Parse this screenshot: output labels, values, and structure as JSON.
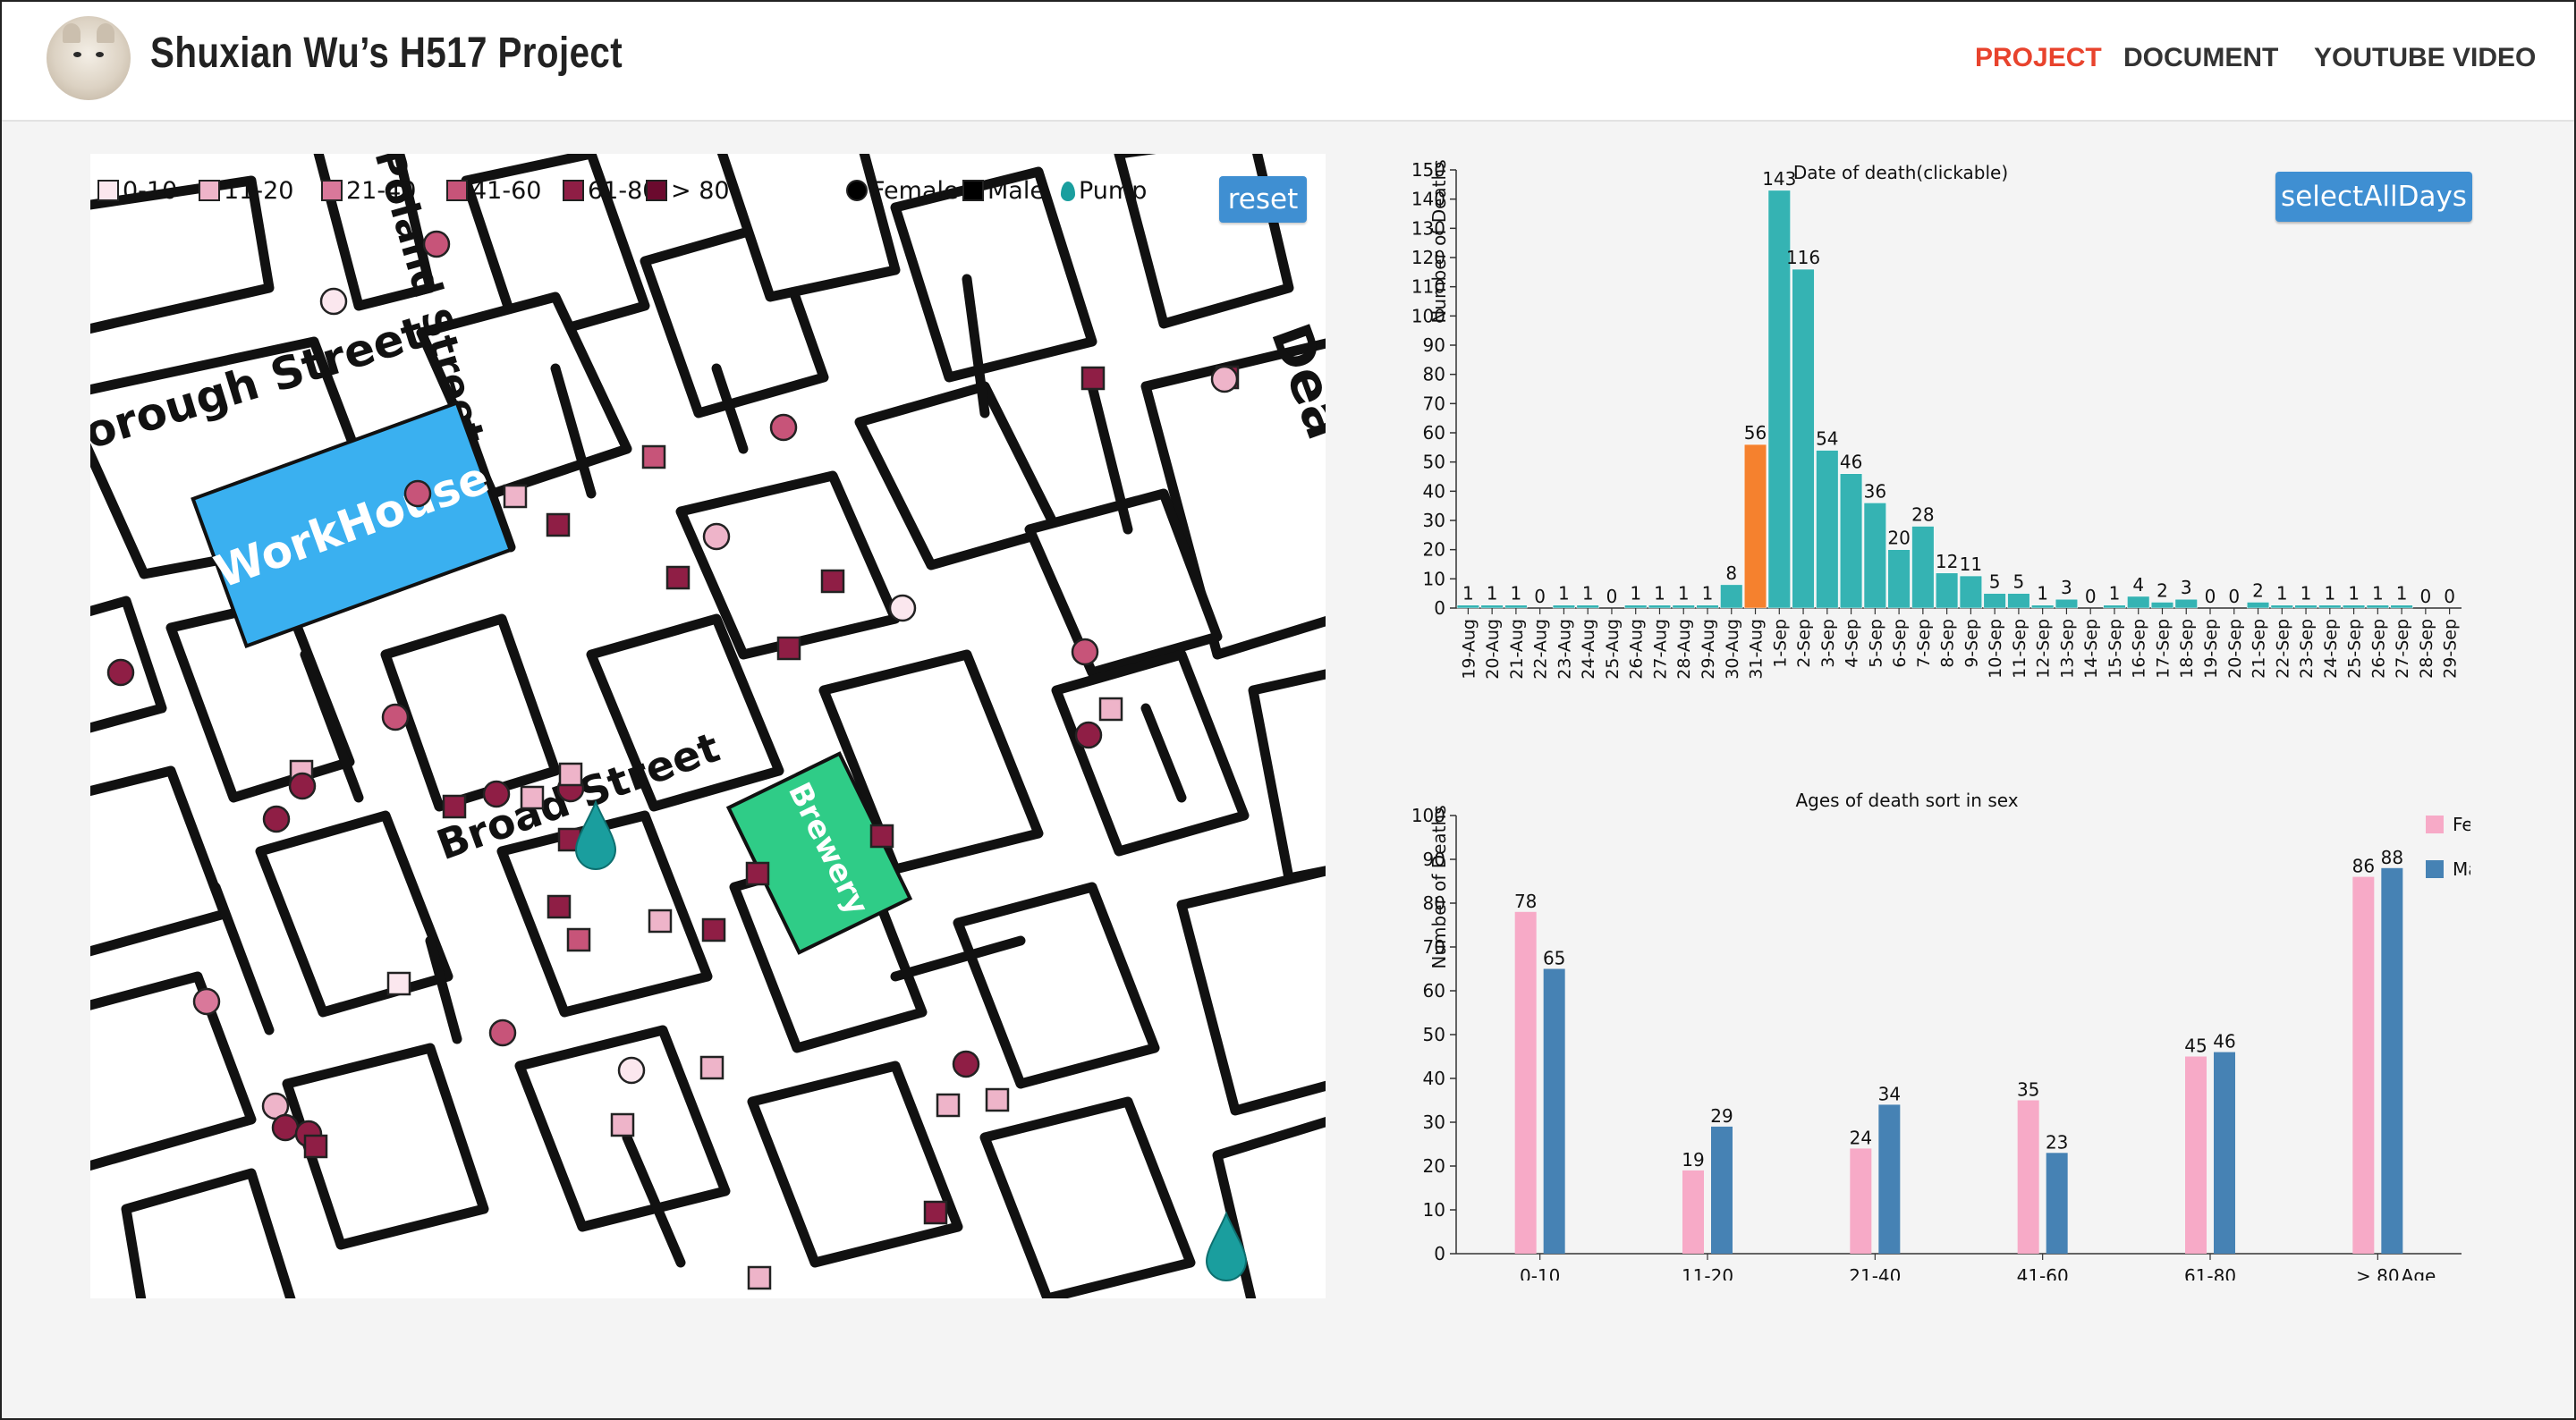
{
  "header": {
    "title": "Shuxian Wu’s H517 Project",
    "nav": [
      "PROJECT",
      "DOCUMENT",
      "YOUTUBE VIDEO"
    ],
    "accent_color": "#e8432d"
  },
  "map": {
    "reset_label": "reset",
    "legend": [
      "0-10",
      "11-20",
      "21-40",
      "41-60",
      "61-80",
      "> 80",
      "Female",
      "Male",
      "Pump"
    ],
    "age_colors": [
      "#fbe7ee",
      "#eeb4c9",
      "#d9789a",
      "#c75479",
      "#8f1e45",
      "#6b0a2e"
    ],
    "pump_color": "#1a9e9e",
    "street_labels": [
      "orough Street",
      "Poland Street",
      "Broad Street",
      "Dea"
    ],
    "buildings": {
      "workhouse": "WorkHouse",
      "brewery": "Brewery"
    },
    "workhouse_color": "#3ab0f0",
    "brewery_color": "#2fcc87"
  },
  "select_all_label": "selectAllDays",
  "chart_data": [
    {
      "type": "bar",
      "title": "Date of death(clickable)",
      "ylabel": "Number of Deaths",
      "xlabel": "",
      "ylim": [
        0,
        150
      ],
      "yticks": [
        0,
        10,
        20,
        30,
        40,
        50,
        60,
        70,
        80,
        90,
        100,
        110,
        120,
        130,
        140,
        150
      ],
      "categories": [
        "19-Aug",
        "20-Aug",
        "21-Aug",
        "22-Aug",
        "23-Aug",
        "24-Aug",
        "25-Aug",
        "26-Aug",
        "27-Aug",
        "28-Aug",
        "29-Aug",
        "30-Aug",
        "31-Aug",
        "1-Sep",
        "2-Sep",
        "3-Sep",
        "4-Sep",
        "5-Sep",
        "6-Sep",
        "7-Sep",
        "8-Sep",
        "9-Sep",
        "10-Sep",
        "11-Sep",
        "12-Sep",
        "13-Sep",
        "14-Sep",
        "15-Sep",
        "16-Sep",
        "17-Sep",
        "18-Sep",
        "19-Sep",
        "20-Sep",
        "21-Sep",
        "22-Sep",
        "23-Sep",
        "24-Sep",
        "25-Sep",
        "26-Sep",
        "27-Sep",
        "28-Sep",
        "29-Sep"
      ],
      "values": [
        1,
        1,
        1,
        0,
        1,
        1,
        0,
        1,
        1,
        1,
        1,
        8,
        56,
        143,
        116,
        54,
        46,
        36,
        20,
        28,
        12,
        11,
        5,
        5,
        1,
        3,
        0,
        1,
        4,
        2,
        3,
        0,
        0,
        2,
        1,
        1,
        1,
        1,
        1,
        1,
        0,
        0
      ],
      "highlight": "31-Aug",
      "bar_color": "#35b3b3",
      "highlight_color": "#f5812e"
    },
    {
      "type": "bar",
      "title": "Ages of death sort in sex",
      "ylabel": "Number of Deaths",
      "xlabel": "Age",
      "ylim": [
        0,
        100
      ],
      "yticks": [
        0,
        10,
        20,
        30,
        40,
        50,
        60,
        70,
        80,
        90,
        100
      ],
      "categories": [
        "0-10",
        "11-20",
        "21-40",
        "41-60",
        "61-80",
        "> 80"
      ],
      "series": [
        {
          "name": "Female",
          "values": [
            78,
            19,
            24,
            35,
            45,
            86
          ],
          "color": "#f7aac7"
        },
        {
          "name": "Male",
          "values": [
            65,
            29,
            34,
            23,
            46,
            88
          ],
          "color": "#4682b4"
        }
      ],
      "legend": "top-right"
    }
  ]
}
